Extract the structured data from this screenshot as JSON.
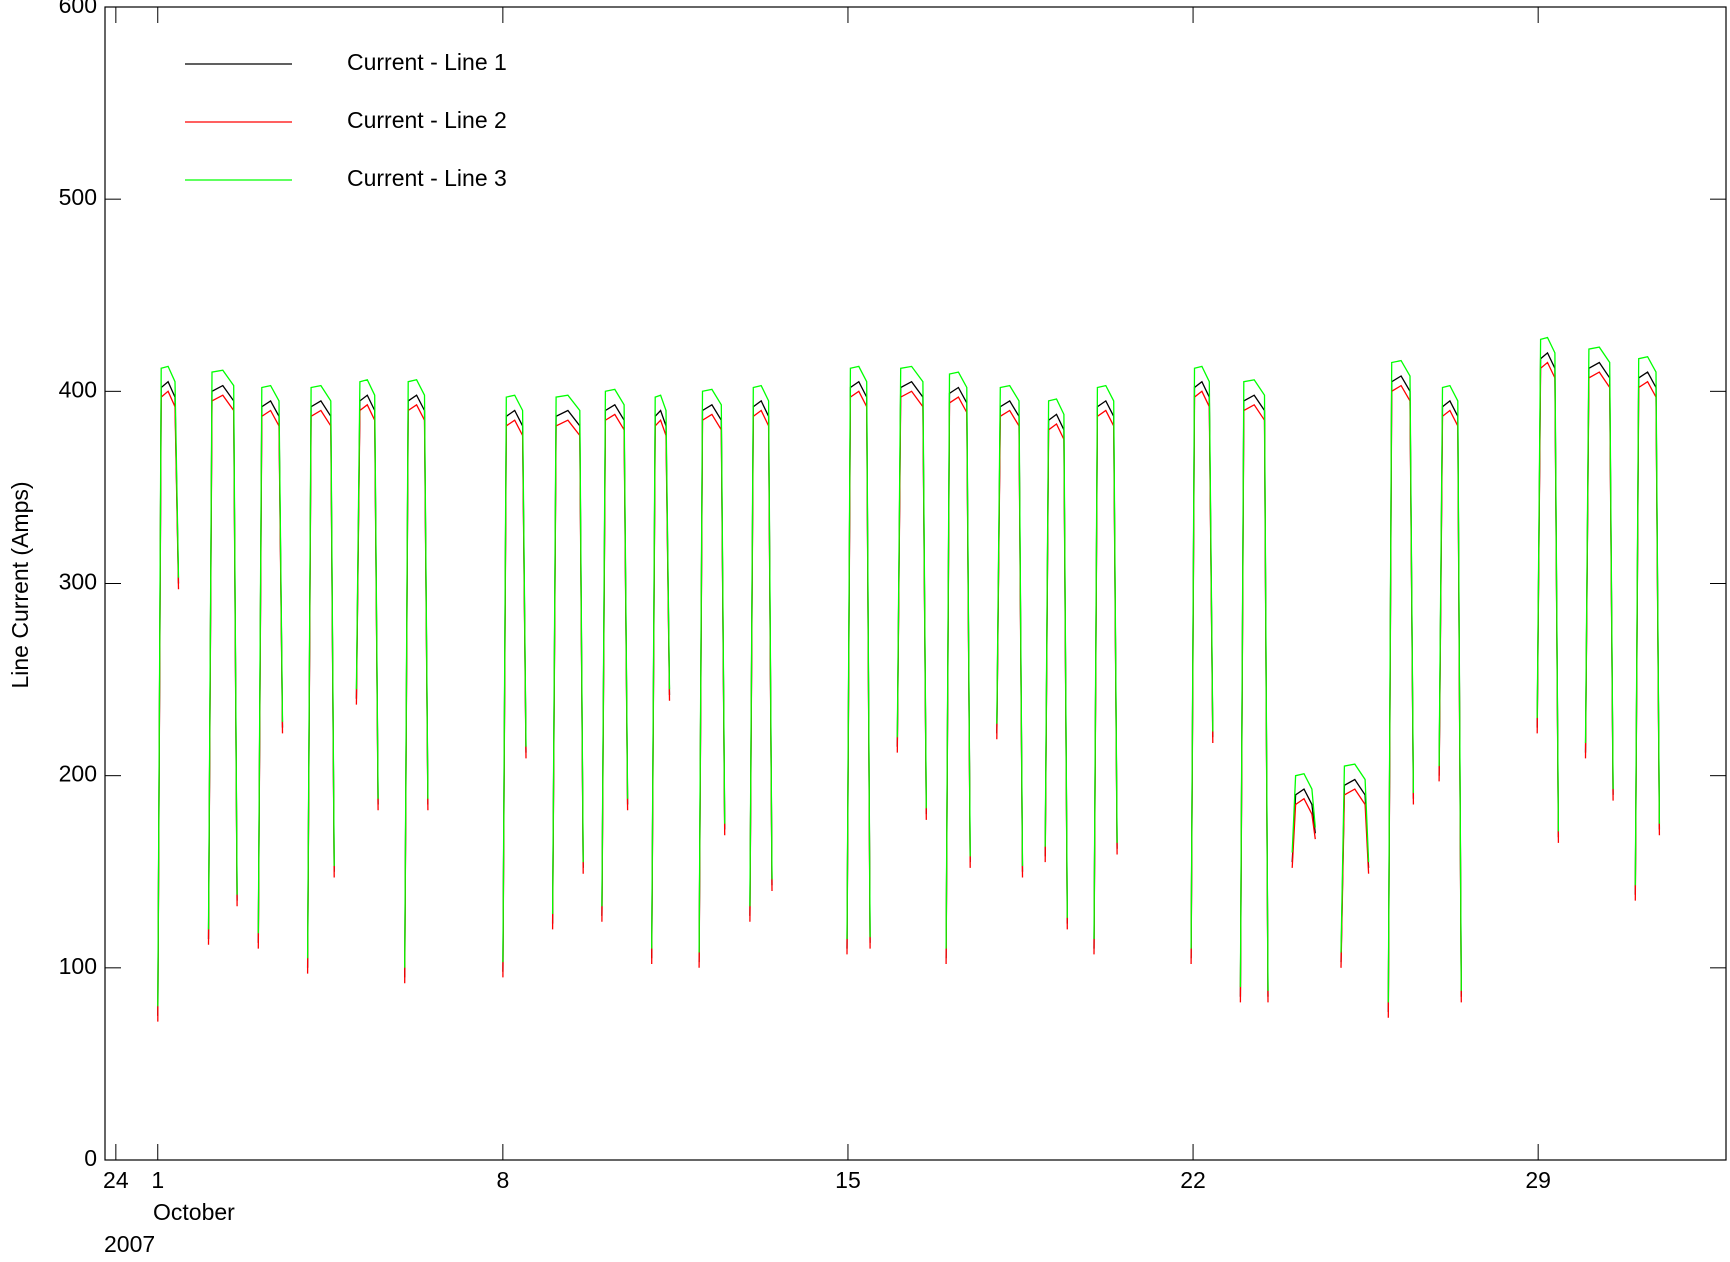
{
  "chart_data": {
    "type": "line",
    "ylabel": "Line Current (Amps)",
    "xlabel_month": "October",
    "xlabel_year": "2007",
    "xlim": [
      -0.07,
      32.81
    ],
    "xticks": [
      {
        "value": 0.15,
        "label": "24"
      },
      1,
      8,
      15,
      22,
      29
    ],
    "ylim": [
      0,
      600
    ],
    "yticks": [
      0,
      100,
      200,
      300,
      400,
      500,
      600
    ],
    "legend": "upper left",
    "x": [
      1.0,
      1.07,
      1.21,
      1.35,
      1.42,
      1.7,
      2.03,
      2.1,
      2.32,
      2.54,
      2.61,
      2.8,
      3.04,
      3.11,
      3.29,
      3.46,
      3.53,
      3.8,
      4.04,
      4.11,
      4.31,
      4.51,
      4.58,
      4.8,
      5.03,
      5.1,
      5.25,
      5.4,
      5.47,
      5.7,
      6.01,
      6.08,
      6.25,
      6.41,
      6.48,
      7.2,
      8.0,
      8.07,
      8.24,
      8.4,
      8.47,
      8.7,
      9.01,
      9.08,
      9.32,
      9.56,
      9.63,
      9.8,
      10.01,
      10.08,
      10.27,
      10.46,
      10.53,
      10.8,
      11.02,
      11.09,
      11.2,
      11.31,
      11.38,
      11.7,
      11.98,
      12.05,
      12.24,
      12.43,
      12.5,
      12.8,
      13.01,
      13.08,
      13.24,
      13.39,
      13.46,
      14.2,
      14.98,
      15.05,
      15.22,
      15.38,
      15.45,
      15.7,
      16.0,
      16.07,
      16.29,
      16.52,
      16.59,
      16.8,
      16.99,
      17.06,
      17.24,
      17.41,
      17.48,
      17.7,
      18.02,
      18.09,
      18.28,
      18.47,
      18.54,
      18.8,
      19.0,
      19.07,
      19.23,
      19.38,
      19.45,
      19.7,
      19.99,
      20.06,
      20.23,
      20.39,
      20.46,
      21.2,
      21.96,
      22.03,
      22.18,
      22.33,
      22.4,
      22.7,
      22.96,
      23.03,
      23.24,
      23.45,
      23.52,
      23.8,
      24.01,
      24.08,
      24.25,
      24.41,
      24.48,
      24.7,
      25.0,
      25.07,
      25.28,
      25.49,
      25.56,
      25.8,
      25.96,
      26.03,
      26.22,
      26.4,
      26.47,
      26.7,
      26.99,
      27.06,
      27.21,
      27.37,
      27.44,
      28.2,
      28.98,
      29.05,
      29.19,
      29.34,
      29.41,
      29.7,
      29.96,
      30.03,
      30.24,
      30.45,
      30.52,
      30.7,
      30.97,
      31.04,
      31.22,
      31.39,
      31.46
    ],
    "series": [
      {
        "name": "Current - Line 1",
        "color": "#000000",
        "values": [
          75,
          402,
          405,
          397,
          300,
          null,
          115,
          400,
          403,
          395,
          135,
          null,
          113,
          392,
          395,
          387,
          225,
          null,
          100,
          392,
          395,
          387,
          150,
          null,
          240,
          395,
          398,
          390,
          185,
          null,
          95,
          395,
          398,
          390,
          185,
          null,
          98,
          387,
          390,
          382,
          212,
          null,
          123,
          387,
          390,
          382,
          152,
          null,
          127,
          390,
          393,
          385,
          185,
          null,
          105,
          387,
          390,
          382,
          242,
          null,
          103,
          390,
          393,
          385,
          172,
          null,
          127,
          392,
          395,
          387,
          143,
          null,
          110,
          402,
          405,
          397,
          113,
          null,
          215,
          402,
          405,
          397,
          180,
          null,
          105,
          399,
          402,
          394,
          155,
          null,
          222,
          392,
          395,
          387,
          150,
          null,
          158,
          385,
          388,
          380,
          123,
          null,
          110,
          392,
          395,
          387,
          162,
          null,
          105,
          402,
          405,
          397,
          220,
          null,
          85,
          395,
          398,
          390,
          85,
          null,
          155,
          190,
          193,
          185,
          170,
          null,
          103,
          195,
          198,
          190,
          152,
          null,
          77,
          405,
          408,
          400,
          188,
          null,
          200,
          392,
          395,
          387,
          85,
          null,
          225,
          417,
          420,
          412,
          168,
          null,
          212,
          412,
          415,
          407,
          190,
          null,
          138,
          407,
          410,
          402,
          172
        ]
      },
      {
        "name": "Current - Line 2",
        "color": "#ff0000",
        "values": [
          72,
          397,
          400,
          392,
          297,
          null,
          112,
          395,
          398,
          390,
          132,
          null,
          110,
          387,
          390,
          382,
          222,
          null,
          97,
          387,
          390,
          382,
          147,
          null,
          237,
          390,
          393,
          385,
          182,
          null,
          92,
          390,
          393,
          385,
          182,
          null,
          95,
          382,
          385,
          377,
          209,
          null,
          120,
          382,
          385,
          377,
          149,
          null,
          124,
          385,
          388,
          380,
          182,
          null,
          102,
          382,
          385,
          377,
          239,
          null,
          100,
          385,
          388,
          380,
          169,
          null,
          124,
          387,
          390,
          382,
          140,
          null,
          107,
          397,
          400,
          392,
          110,
          null,
          212,
          397,
          400,
          392,
          177,
          null,
          102,
          394,
          397,
          389,
          152,
          null,
          219,
          387,
          390,
          382,
          147,
          null,
          155,
          380,
          383,
          375,
          120,
          null,
          107,
          387,
          390,
          382,
          159,
          null,
          102,
          397,
          400,
          392,
          217,
          null,
          82,
          390,
          393,
          385,
          82,
          null,
          152,
          185,
          188,
          180,
          167,
          null,
          100,
          190,
          193,
          185,
          149,
          null,
          74,
          400,
          403,
          395,
          185,
          null,
          197,
          387,
          390,
          382,
          82,
          null,
          222,
          412,
          415,
          407,
          165,
          null,
          209,
          407,
          410,
          402,
          187,
          null,
          135,
          402,
          405,
          397,
          169
        ]
      },
      {
        "name": "Current - Line 3",
        "color": "#00ff00",
        "values": [
          80,
          412,
          413,
          405,
          303,
          null,
          120,
          410,
          411,
          403,
          138,
          null,
          118,
          402,
          403,
          395,
          228,
          null,
          105,
          402,
          403,
          395,
          153,
          null,
          245,
          405,
          406,
          398,
          188,
          null,
          100,
          405,
          406,
          398,
          188,
          null,
          103,
          397,
          398,
          390,
          215,
          null,
          128,
          397,
          398,
          390,
          155,
          null,
          132,
          400,
          401,
          393,
          188,
          null,
          110,
          397,
          398,
          390,
          245,
          null,
          108,
          400,
          401,
          393,
          175,
          null,
          132,
          402,
          403,
          395,
          146,
          null,
          115,
          412,
          413,
          405,
          116,
          null,
          220,
          412,
          413,
          405,
          183,
          null,
          110,
          409,
          410,
          402,
          158,
          null,
          227,
          402,
          403,
          395,
          153,
          null,
          163,
          395,
          396,
          388,
          126,
          null,
          115,
          402,
          403,
          395,
          165,
          null,
          110,
          412,
          413,
          405,
          223,
          null,
          90,
          405,
          406,
          398,
          88,
          null,
          160,
          200,
          201,
          193,
          173,
          null,
          108,
          205,
          206,
          198,
          155,
          null,
          82,
          415,
          416,
          408,
          191,
          null,
          205,
          402,
          403,
          395,
          88,
          null,
          230,
          427,
          428,
          420,
          171,
          null,
          217,
          422,
          423,
          415,
          193,
          null,
          143,
          417,
          418,
          410,
          175
        ]
      }
    ]
  }
}
